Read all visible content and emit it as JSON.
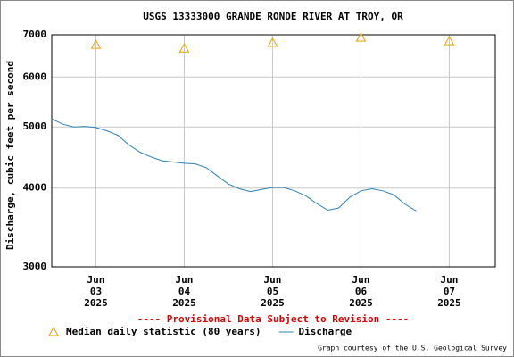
{
  "chart_data": {
    "type": "line",
    "title": "USGS 13333000 GRANDE RONDE RIVER AT TROY, OR",
    "y_label": "Discharge, cubic feet per second",
    "annotation": "---- Provisional Data Subject to Revision ----",
    "credit": "Graph courtesy of the U.S. Geological Survey",
    "log_y": true,
    "grid": true,
    "xlim": [
      "2025-06-02 12:00",
      "2025-06-07 12:30"
    ],
    "xticks": [
      {
        "value": "2025-06-03 00:00",
        "label": "Jun 03 2025"
      },
      {
        "value": "2025-06-04 00:00",
        "label": "Jun 04 2025"
      },
      {
        "value": "2025-06-05 00:00",
        "label": "Jun 05 2025"
      },
      {
        "value": "2025-06-06 00:00",
        "label": "Jun 06 2025"
      },
      {
        "value": "2025-06-07 00:00",
        "label": "Jun 07 2025"
      }
    ],
    "ylim": [
      3000,
      7000
    ],
    "yticks": [
      3000,
      4000,
      5000,
      6000,
      7000
    ],
    "series": [
      {
        "name": "Median daily statistic (80 years)",
        "color": "#e8a000",
        "style": "triangle",
        "x": [
          "2025-06-03 00:00",
          "2025-06-04 00:00",
          "2025-06-05 00:00",
          "2025-06-06 00:00",
          "2025-06-07 00:00"
        ],
        "values": [
          6750,
          6660,
          6800,
          6930,
          6840
        ]
      },
      {
        "name": "Discharge",
        "color": "#2a82b8",
        "style": "line",
        "x": [
          "2025-06-02 12:00",
          "2025-06-02 15:00",
          "2025-06-02 18:00",
          "2025-06-02 21:00",
          "2025-06-03 00:00",
          "2025-06-03 03:00",
          "2025-06-03 06:00",
          "2025-06-03 09:00",
          "2025-06-03 12:00",
          "2025-06-03 15:00",
          "2025-06-03 18:00",
          "2025-06-03 21:00",
          "2025-06-04 00:00",
          "2025-06-04 03:00",
          "2025-06-04 06:00",
          "2025-06-04 09:00",
          "2025-06-04 12:00",
          "2025-06-04 15:00",
          "2025-06-04 18:00",
          "2025-06-04 21:00",
          "2025-06-05 00:00",
          "2025-06-05 03:00",
          "2025-06-05 06:00",
          "2025-06-05 09:00",
          "2025-06-05 12:00",
          "2025-06-05 15:00",
          "2025-06-05 18:00",
          "2025-06-05 21:00",
          "2025-06-06 00:00",
          "2025-06-06 03:00",
          "2025-06-06 06:00",
          "2025-06-06 09:00",
          "2025-06-06 12:00",
          "2025-06-06 15:00"
        ],
        "values": [
          5150,
          5050,
          5000,
          5010,
          4990,
          4930,
          4850,
          4680,
          4560,
          4480,
          4420,
          4400,
          4380,
          4370,
          4310,
          4180,
          4060,
          3990,
          3950,
          3980,
          4010,
          4010,
          3960,
          3890,
          3780,
          3690,
          3720,
          3870,
          3960,
          3990,
          3960,
          3900,
          3770,
          3680
        ]
      }
    ]
  }
}
